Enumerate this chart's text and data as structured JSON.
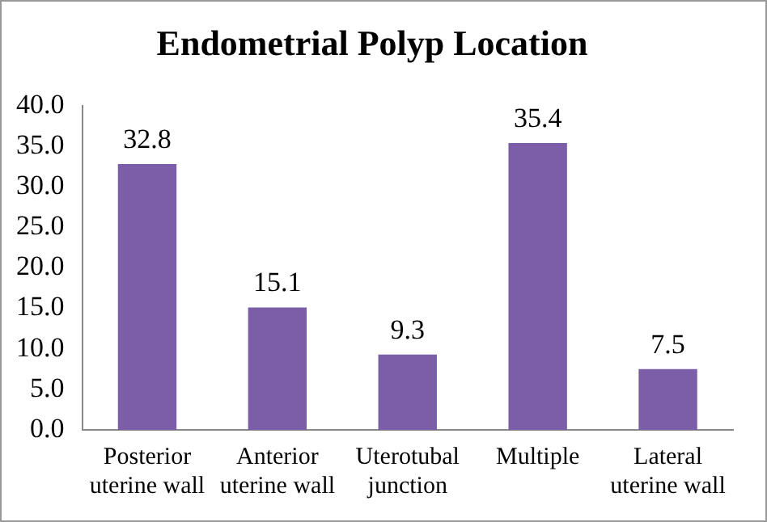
{
  "chart_data": {
    "type": "bar",
    "title": "Endometrial Polyp Location",
    "categories": [
      "Posterior uterine wall",
      "Anterior uterine wall",
      "Uterotubal junction",
      "Multiple",
      "Lateral uterine wall"
    ],
    "values": [
      32.8,
      15.1,
      9.3,
      35.4,
      7.5
    ],
    "color": "#7b5ea7",
    "ylim": [
      0,
      40
    ],
    "yticks": [
      {
        "value": 0,
        "label": "0.0"
      },
      {
        "value": 5,
        "label": "5.0"
      },
      {
        "value": 10,
        "label": "10.0"
      },
      {
        "value": 15,
        "label": "15.0"
      },
      {
        "value": 20,
        "label": "20.0"
      },
      {
        "value": 25,
        "label": "25.0"
      },
      {
        "value": 30,
        "label": "30.0"
      },
      {
        "value": 35,
        "label": "35.0"
      },
      {
        "value": 40,
        "label": "40.0"
      }
    ],
    "grid": false,
    "data_labels": true
  }
}
